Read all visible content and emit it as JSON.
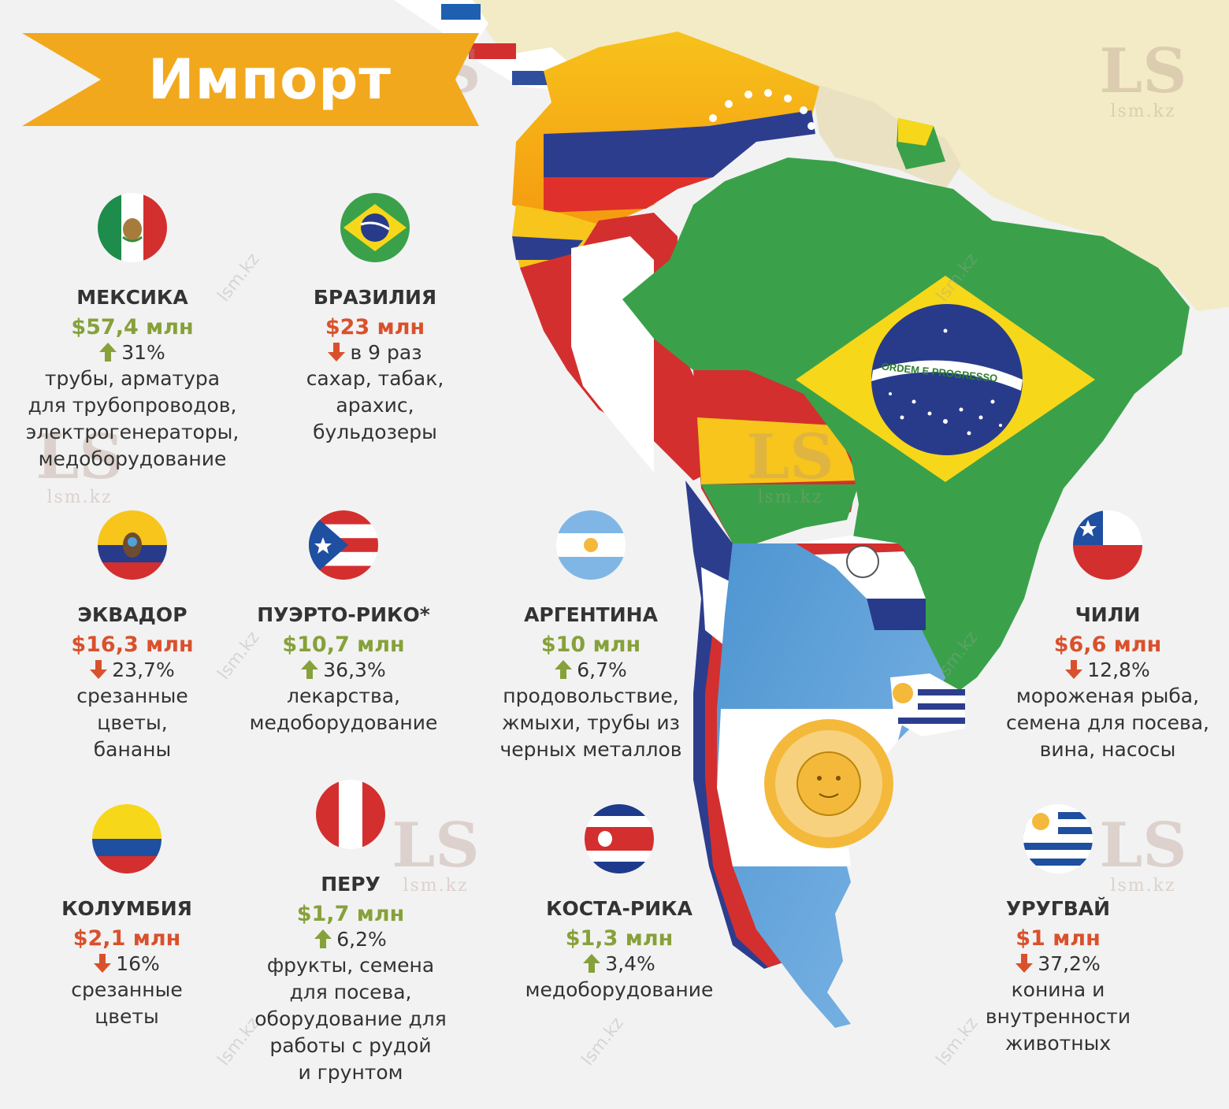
{
  "title": "Импорт",
  "watermark": {
    "logo": "LS",
    "site": "lsm.kz"
  },
  "colors": {
    "banner": "#f2a81d",
    "increase": "#86a13a",
    "decrease": "#d9512c",
    "background": "#f2f2f2"
  },
  "brazil_motto": "ORDEM E PROGRESSO",
  "countries": [
    {
      "flag": "mexico-flag-icon",
      "name": "МЕКСИКА",
      "amount": "$57,4 млн",
      "direction": "up",
      "change": "31%",
      "goods": [
        "трубы, арматура",
        "для трубопроводов,",
        "электрогенераторы,",
        "медоборудование"
      ]
    },
    {
      "flag": "brazil-flag-icon",
      "name": "БРАЗИЛИЯ",
      "amount": "$23 млн",
      "direction": "down",
      "change": "в 9 раз",
      "goods": [
        "сахар, табак,",
        "арахис,",
        "бульдозеры"
      ]
    },
    {
      "flag": "ecuador-flag-icon",
      "name": "ЭКВАДОР",
      "amount": "$16,3 млн",
      "direction": "down",
      "change": "23,7%",
      "goods": [
        "срезанные",
        "цветы,",
        "бананы"
      ]
    },
    {
      "flag": "puerto-rico-flag-icon",
      "name": "ПУЭРТО-РИКО*",
      "amount": "$10,7 млн",
      "direction": "up",
      "change": "36,3%",
      "goods": [
        "лекарства,",
        "медоборудование"
      ]
    },
    {
      "flag": "argentina-flag-icon",
      "name": "АРГЕНТИНА",
      "amount": "$10 млн",
      "direction": "up",
      "change": "6,7%",
      "goods": [
        "продовольствие,",
        "жмыхи, трубы из",
        "черных металлов"
      ]
    },
    {
      "flag": "chile-flag-icon",
      "name": "ЧИЛИ",
      "amount": "$6,6 млн",
      "direction": "down",
      "change": "12,8%",
      "goods": [
        "мороженая рыба,",
        "семена для посева,",
        "вина, насосы"
      ]
    },
    {
      "flag": "colombia-flag-icon",
      "name": "КОЛУМБИЯ",
      "amount": "$2,1 млн",
      "direction": "down",
      "change": "16%",
      "goods": [
        "срезанные",
        "цветы"
      ]
    },
    {
      "flag": "peru-flag-icon",
      "name": "ПЕРУ",
      "amount": "$1,7 млн",
      "direction": "up",
      "change": "6,2%",
      "goods": [
        "фрукты, семена",
        "для посева,",
        "оборудование для",
        "работы с рудой",
        "и грунтом"
      ]
    },
    {
      "flag": "costa-rica-flag-icon",
      "name": "КОСТА-РИКА",
      "amount": "$1,3 млн",
      "direction": "up",
      "change": "3,4%",
      "goods": [
        "медоборудование"
      ]
    },
    {
      "flag": "uruguay-flag-icon",
      "name": "УРУГВАЙ",
      "amount": "$1 млн",
      "direction": "down",
      "change": "37,2%",
      "goods": [
        "конина и",
        "внутренности",
        "животных"
      ]
    }
  ]
}
